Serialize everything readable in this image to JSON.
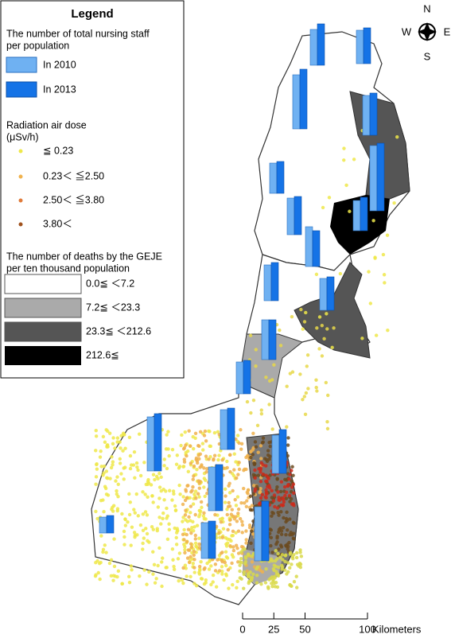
{
  "legend": {
    "title": "Legend",
    "staff_title": [
      "The number of total nursing staff",
      "per population"
    ],
    "staff_items": [
      "In 2010",
      "In 2013"
    ],
    "radiation_title": [
      "Radiation air dose",
      "(μSv/h)"
    ],
    "radiation_items": [
      "≦ 0.23",
      "0.23＜ ≦2.50",
      "2.50＜ ≦3.80",
      "3.80＜"
    ],
    "deaths_title": [
      "The number of deaths by the GEJE",
      "per ten thousand population"
    ],
    "deaths_items": [
      "0.0≦ ＜7.2",
      "7.2≦ ＜23.3",
      "23.3≦ ＜212.6",
      "212.6≦"
    ]
  },
  "compass": {
    "n": "N",
    "s": "S",
    "e": "E",
    "w": "W"
  },
  "scale": {
    "ticks": [
      0,
      25,
      50,
      100
    ],
    "unit": "Kilometers"
  },
  "nursing_bars": [
    {
      "y2010": 45,
      "y2013": 52
    },
    {
      "y2010": 42,
      "y2013": 45
    },
    {
      "y2010": 68,
      "y2013": 75
    },
    {
      "y2010": 50,
      "y2013": 53
    },
    {
      "y2010": 82,
      "y2013": 85
    },
    {
      "y2010": 38,
      "y2013": 40
    },
    {
      "y2010": 46,
      "y2013": 48
    },
    {
      "y2010": 38,
      "y2013": 42
    },
    {
      "y2010": 50,
      "y2013": 45
    },
    {
      "y2010": 45,
      "y2013": 48
    },
    {
      "y2010": 40,
      "y2013": 42
    },
    {
      "y2010": 50,
      "y2013": 50
    },
    {
      "y2010": 40,
      "y2013": 42
    },
    {
      "y2010": 50,
      "y2013": 52
    },
    {
      "y2010": 68,
      "y2013": 72
    },
    {
      "y2010": 48,
      "y2013": 55
    },
    {
      "y2010": 55,
      "y2013": 58
    },
    {
      "y2010": 20,
      "y2013": 22
    },
    {
      "y2010": 45,
      "y2013": 47
    },
    {
      "y2010": 68,
      "y2013": 75
    }
  ]
}
